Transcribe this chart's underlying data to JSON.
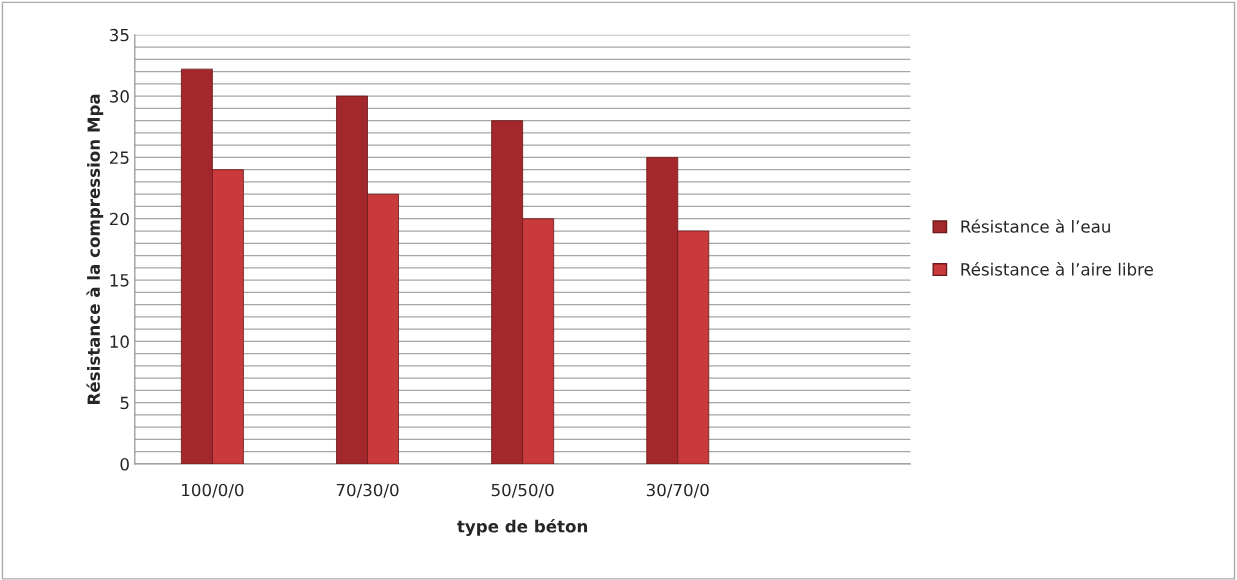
{
  "chart_data": {
    "type": "bar",
    "xlabel": "type de béton",
    "ylabel": "Résistance à la compression Mpa",
    "categories": [
      "100/0/0",
      "70/30/0",
      "50/50/0",
      "30/70/0",
      null
    ],
    "series": [
      {
        "name": "Résistance à l’eau",
        "color": "#a3282b",
        "values": [
          32.2,
          30,
          28,
          25,
          null
        ]
      },
      {
        "name": "Résistance à l’aire libre",
        "color": "#c83a3c",
        "values": [
          24,
          22,
          20,
          19,
          null
        ]
      }
    ],
    "ylim": [
      0,
      35
    ],
    "yticks": [
      0,
      {
        "value": 1,
        "label": null
      },
      {
        "value": 2,
        "label": null
      },
      {
        "value": 3,
        "label": null
      },
      {
        "value": 4,
        "label": null
      },
      5,
      {
        "value": 6,
        "label": null
      },
      {
        "value": 7,
        "label": null
      },
      {
        "value": 8,
        "label": null
      },
      {
        "value": 9,
        "label": null
      },
      10,
      {
        "value": 11,
        "label": null
      },
      {
        "value": 12,
        "label": null
      },
      {
        "value": 13,
        "label": null
      },
      {
        "value": 14,
        "label": null
      },
      15,
      {
        "value": 16,
        "label": null
      },
      {
        "value": 17,
        "label": null
      },
      {
        "value": 18,
        "label": null
      },
      {
        "value": 19,
        "label": null
      },
      20,
      {
        "value": 21,
        "label": null
      },
      {
        "value": 22,
        "label": null
      },
      {
        "value": 23,
        "label": null
      },
      {
        "value": 24,
        "label": null
      },
      25,
      {
        "value": 26,
        "label": null
      },
      {
        "value": 27,
        "label": null
      },
      {
        "value": 28,
        "label": null
      },
      {
        "value": 29,
        "label": null
      },
      30,
      {
        "value": 31,
        "label": null
      },
      {
        "value": 32,
        "label": null
      },
      {
        "value": 33,
        "label": null
      },
      {
        "value": 34,
        "label": null
      },
      35
    ],
    "grid": "y",
    "legend": "right"
  }
}
